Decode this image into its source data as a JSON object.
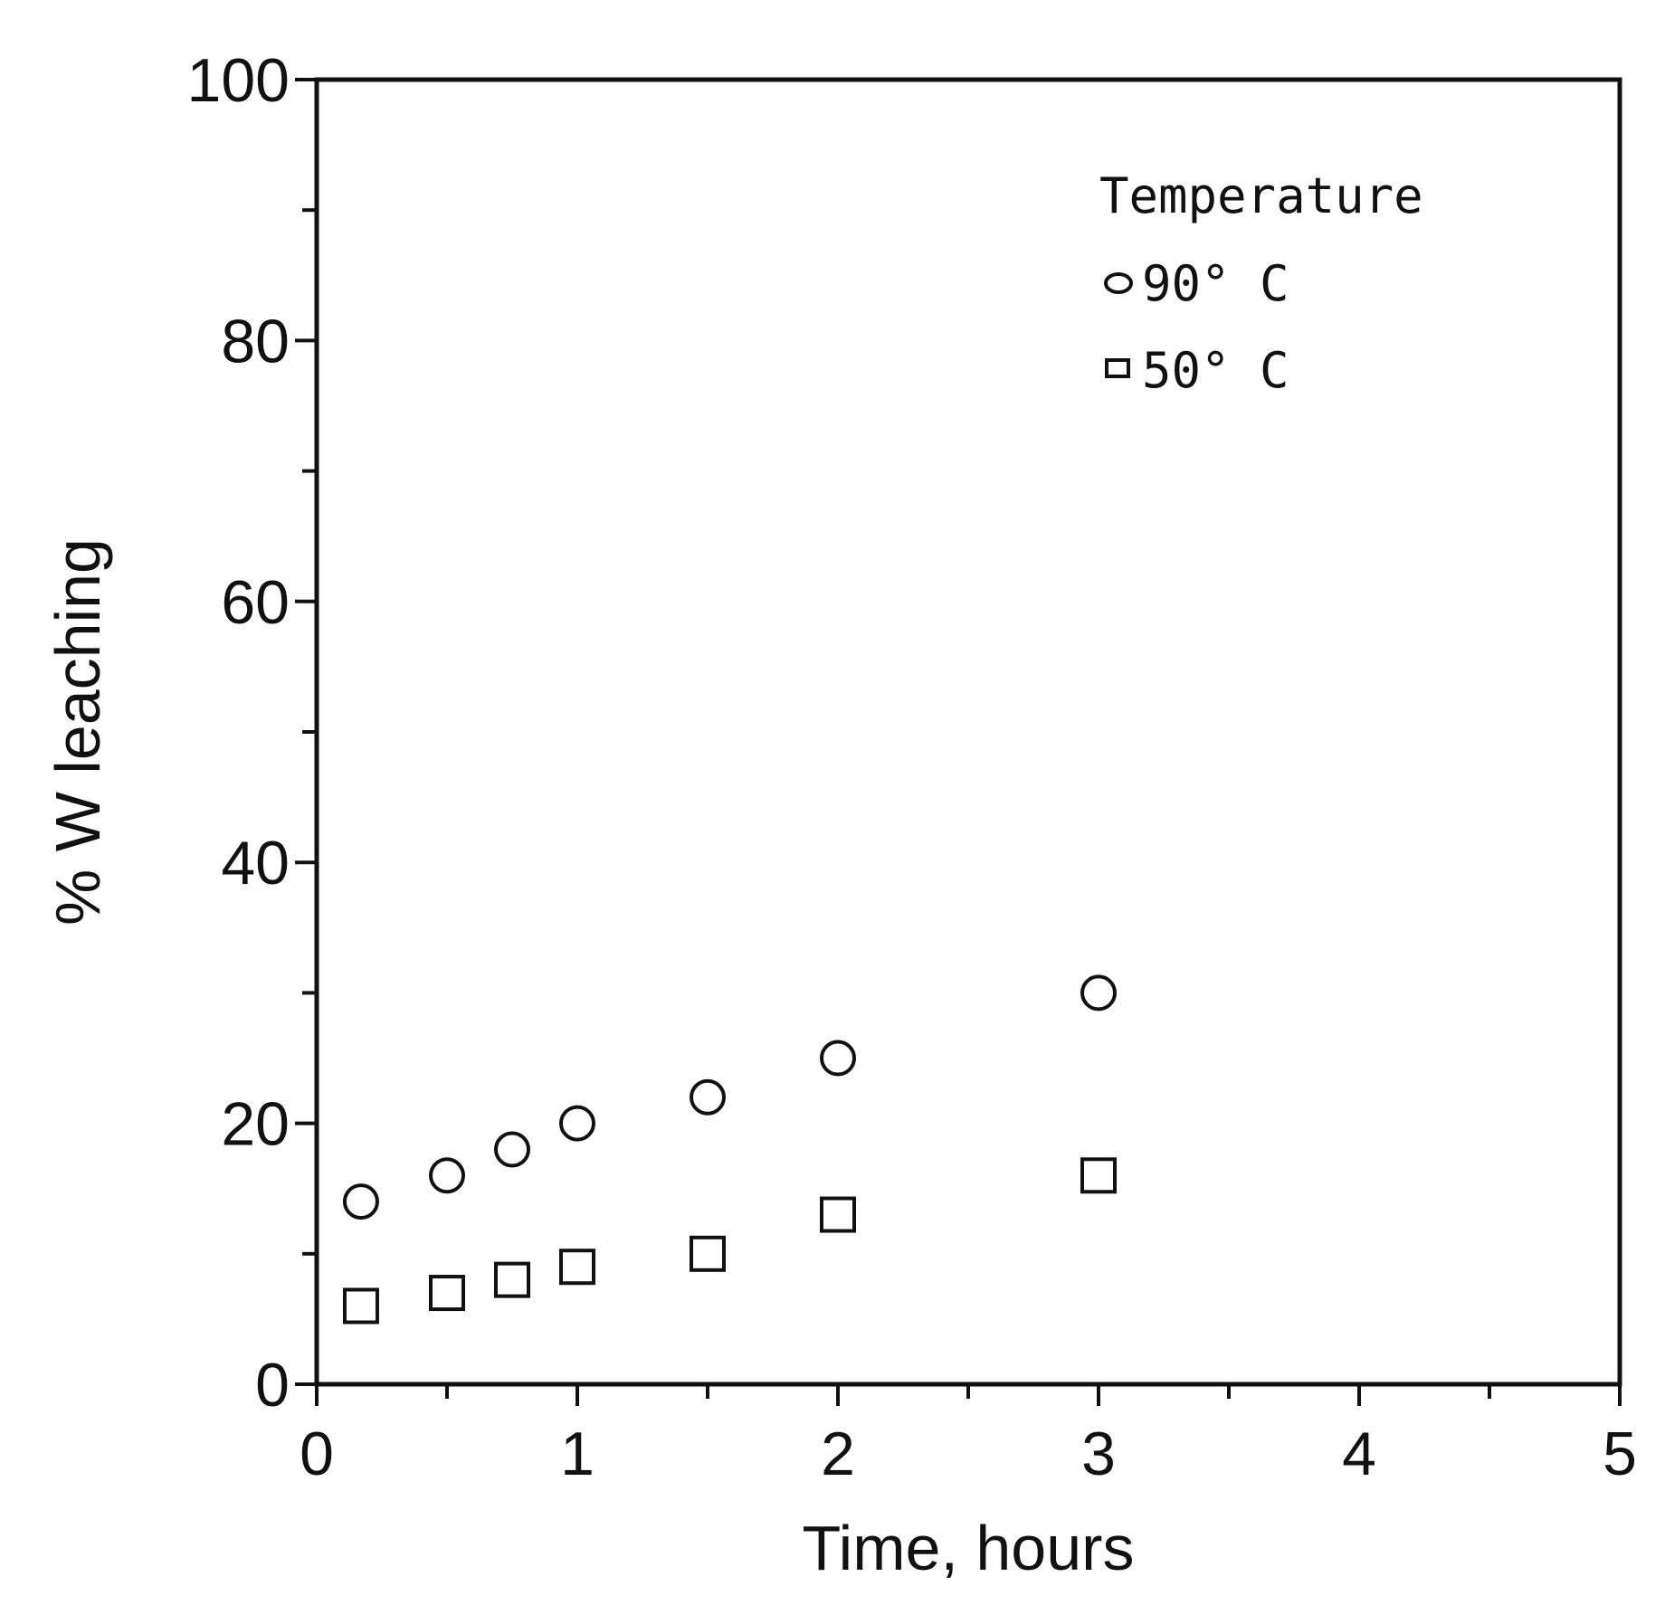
{
  "chart_data": {
    "type": "scatter",
    "xlabel": "Time, hours",
    "ylabel": "% W leaching",
    "xlim": [
      0,
      5
    ],
    "ylim": [
      0,
      100
    ],
    "x_major_ticks": [
      0,
      1,
      2,
      3,
      4,
      5
    ],
    "x_minor_ticks": [
      0.5,
      1.5,
      2.5,
      3.5,
      4.5
    ],
    "y_major_ticks": [
      0,
      20,
      40,
      60,
      80,
      100
    ],
    "y_minor_ticks": [
      10,
      30,
      50,
      70,
      90
    ],
    "x_tick_labels": [
      "0",
      "1",
      "2",
      "3",
      "4",
      "5"
    ],
    "y_tick_labels": [
      "0",
      "20",
      "40",
      "60",
      "80",
      "100"
    ],
    "grid": false,
    "legend": {
      "title": "Temperature",
      "placement": "top-right",
      "entries": [
        {
          "marker": "circle",
          "label": "90° C"
        },
        {
          "marker": "square",
          "label": "50° C"
        }
      ]
    },
    "series": [
      {
        "name": "90° C",
        "marker": "circle",
        "x": [
          0.17,
          0.5,
          0.75,
          1.0,
          1.5,
          2.0,
          3.0
        ],
        "y": [
          14,
          16,
          18,
          20,
          22,
          25,
          30
        ]
      },
      {
        "name": "50° C",
        "marker": "square",
        "x": [
          0.17,
          0.5,
          0.75,
          1.0,
          1.5,
          2.0,
          3.0
        ],
        "y": [
          6,
          7,
          8,
          9,
          10,
          13,
          16
        ]
      }
    ]
  },
  "colors": {
    "foreground": "#111111",
    "background": "#ffffff"
  }
}
